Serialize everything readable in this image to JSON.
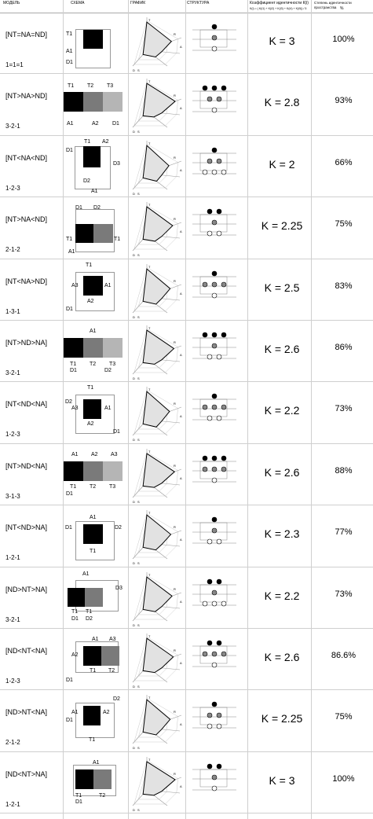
{
  "headers": {
    "model": "МОДЕЛЬ",
    "scheme": "СХЕМА",
    "graph": "ГРАФИК",
    "structure": "СТРУКТУРА",
    "k_coef": "Коэффициент идентичности К(i)",
    "k_formula": "K(i) = ( K(i1) + K(i2) + K(i3) + K(i4) + K(i5)) / 5",
    "degree": "Степень идентичности пространства",
    "degree_unit": "%"
  },
  "rows": [
    {
      "model": "[NT=NA=ND]",
      "code": "1=1=1",
      "k": "K = 3",
      "pct": "100%",
      "scheme": "A",
      "labels": {
        "t": "T1",
        "a": "A1",
        "d": "D1"
      }
    },
    {
      "model": "[NT>NA>ND]",
      "code": "3-2-1",
      "k": "K = 2.8",
      "pct": "93%",
      "scheme": "B",
      "labels": {
        "t1": "T1",
        "t2": "T2",
        "t3": "T3",
        "a": "A1",
        "a2": "A2",
        "d": "D1"
      }
    },
    {
      "model": "[NT<NA<ND]",
      "code": "1-2-3",
      "k": "K = 2",
      "pct": "66%",
      "scheme": "C",
      "labels": {
        "d1": "D1",
        "t": "T1",
        "a2": "A2",
        "d3": "D3",
        "d2": "D2",
        "a1": "A1"
      }
    },
    {
      "model": "[NT>NA<ND]",
      "code": "2-1-2",
      "k": "K = 2.25",
      "pct": "75%",
      "scheme": "D",
      "labels": {
        "d1": "D1",
        "d2": "D2",
        "t1": "T1",
        "t2": "T1",
        "a": "A1"
      }
    },
    {
      "model": "[NT<NA>ND]",
      "code": "1-3-1",
      "k": "K = 2.5",
      "pct": "83%",
      "scheme": "E",
      "labels": {
        "t": "T1",
        "a3": "A3",
        "a1": "A1",
        "a2": "A2",
        "d": "D1"
      }
    },
    {
      "model": "[NT>ND>NA]",
      "code": "3-2-1",
      "k": "K = 2.6",
      "pct": "86%",
      "scheme": "F",
      "labels": {
        "a": "A1",
        "t1": "T1",
        "t2": "T2",
        "t3": "T3",
        "d1": "D1",
        "d2": "D2"
      }
    },
    {
      "model": "[NT<ND<NA]",
      "code": "1-2-3",
      "k": "K = 2.2",
      "pct": "73%",
      "scheme": "G",
      "labels": {
        "t": "T1",
        "d2": "D2",
        "a3": "A3",
        "a1": "A1",
        "a2": "A2",
        "d1": "D1"
      }
    },
    {
      "model": "[NT>ND<NA]",
      "code": "3-1-3",
      "k": "K = 2.6",
      "pct": "88%",
      "scheme": "H",
      "labels": {
        "a1": "A1",
        "a2": "A2",
        "a3": "A3",
        "t1": "T1",
        "t2": "T2",
        "t3": "T3",
        "d": "D1"
      }
    },
    {
      "model": "[NT<ND>NA]",
      "code": "1-2-1",
      "k": "K = 2.3",
      "pct": "77%",
      "scheme": "I",
      "labels": {
        "a": "A1",
        "d1": "D1",
        "d2": "D2",
        "t": "T1"
      }
    },
    {
      "model": "[ND>NT>NA]",
      "code": "3-2-1",
      "k": "K = 2.2",
      "pct": "73%",
      "scheme": "J",
      "labels": {
        "a": "A1",
        "d3": "D3",
        "t1": "T1",
        "t2": "T1",
        "d1": "D1",
        "d2": "D2"
      }
    },
    {
      "model": "[ND<NT<NA]",
      "code": "1-2-3",
      "k": "K = 2.6",
      "pct": "86.6%",
      "scheme": "K",
      "labels": {
        "a1": "A1",
        "a3": "A3",
        "a2": "A2",
        "t1": "T1",
        "t2": "T2",
        "d": "D1"
      }
    },
    {
      "model": "[ND>NT<NA]",
      "code": "2-1-2",
      "k": "K = 2.25",
      "pct": "75%",
      "scheme": "L",
      "labels": {
        "d2": "D2",
        "a1": "A1",
        "a2": "A2",
        "d1": "D1",
        "t": "T1"
      }
    },
    {
      "model": "[ND<NT>NA]",
      "code": "1-2-1",
      "k": "K = 3",
      "pct": "100%",
      "scheme": "M",
      "labels": {
        "a": "A1",
        "t1": "T1",
        "t2": "T2",
        "d": "D1"
      }
    }
  ],
  "graph_axis_labels": {
    "t": "T",
    "a": "A",
    "d": "D",
    "r": "R",
    "s": "S"
  },
  "structure_labels": {
    "t": "T",
    "a": "A",
    "d": "D"
  },
  "colors": {
    "black": "#000000",
    "gray": "#7a7a7a",
    "light": "#b5b5b5",
    "line": "#cfcfcf"
  }
}
